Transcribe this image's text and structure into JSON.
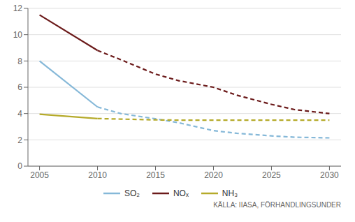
{
  "chart_data": {
    "type": "line",
    "x": [
      2005,
      2010,
      2012,
      2015,
      2017,
      2020,
      2022,
      2025,
      2027,
      2030
    ],
    "series": [
      {
        "name": "SO₂",
        "color": "#85b8d8",
        "line_style": "solid",
        "values": [
          8.0,
          4.5,
          null,
          null,
          null,
          null,
          null,
          null,
          null,
          null
        ]
      },
      {
        "name": "SO₂",
        "color": "#85b8d8",
        "line_style": "dashed",
        "values": [
          null,
          4.5,
          4.0,
          3.6,
          3.3,
          2.7,
          2.5,
          2.3,
          2.2,
          2.15
        ]
      },
      {
        "name": "NOₓ",
        "color": "#6b1a1a",
        "line_style": "solid",
        "values": [
          11.5,
          8.8,
          null,
          null,
          null,
          null,
          null,
          null,
          null,
          null
        ]
      },
      {
        "name": "NOₓ",
        "color": "#6b1a1a",
        "line_style": "dashed",
        "values": [
          null,
          8.8,
          8.1,
          7.0,
          6.5,
          6.0,
          5.4,
          4.7,
          4.3,
          4.0
        ]
      },
      {
        "name": "NH₃",
        "color": "#b5aa2a",
        "line_style": "solid",
        "values": [
          3.95,
          3.62,
          null,
          null,
          null,
          null,
          null,
          null,
          null,
          null
        ]
      },
      {
        "name": "NH₃",
        "color": "#b5aa2a",
        "line_style": "dashed",
        "values": [
          null,
          3.62,
          3.58,
          3.52,
          3.5,
          3.5,
          3.5,
          3.5,
          3.5,
          3.5
        ]
      }
    ],
    "xlim": [
      2004,
      2031
    ],
    "xticks": [
      2005,
      2010,
      2015,
      2020,
      2025,
      2030
    ],
    "ylim": [
      0,
      12
    ],
    "yticks": [
      0,
      2,
      4,
      6,
      8,
      10,
      12
    ],
    "grid": true,
    "legend": "bottom",
    "annotations": [
      "KÄLLA: IIASA, FÖRHANDLINGSUNDER"
    ]
  }
}
